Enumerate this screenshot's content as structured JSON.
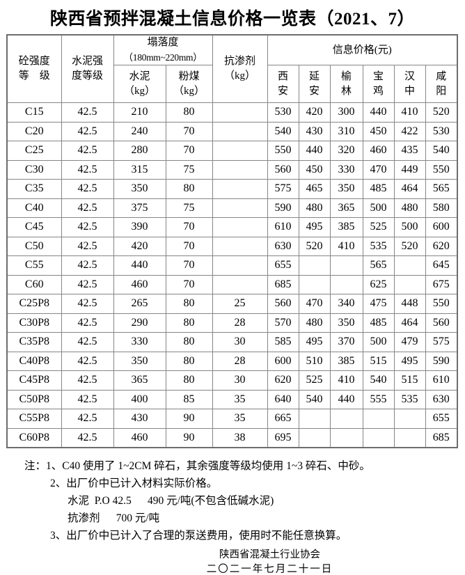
{
  "title": "陕西省预拌混凝土信息价格一览表（2021、7）",
  "table": {
    "header": {
      "strength_grade": {
        "line1": "砼强度",
        "line2": "等　级"
      },
      "cement_grade": {
        "line1": "水泥强",
        "line2": "度等级"
      },
      "slump_group": {
        "line1": "塌落度",
        "line2": "（180mm~220mm）"
      },
      "slump_cement": {
        "line1": "水泥",
        "line2": "（kg）"
      },
      "slump_flyash": {
        "line1": "粉煤",
        "line2": "（kg）"
      },
      "antiseep": {
        "line1": "抗渗剂",
        "line2": "（kg）"
      },
      "price_group": "信息价格(元)",
      "cities": [
        {
          "line1": "西",
          "line2": "安"
        },
        {
          "line1": "延",
          "line2": "安"
        },
        {
          "line1": "榆",
          "line2": "林"
        },
        {
          "line1": "宝",
          "line2": "鸡"
        },
        {
          "line1": "汉",
          "line2": "中"
        },
        {
          "line1": "咸",
          "line2": "阳"
        }
      ]
    },
    "rows": [
      {
        "grade": "C15",
        "cement_grade": "42.5",
        "cement_kg": "210",
        "fly_ash_kg": "80",
        "antiseep_kg": "",
        "prices": [
          "530",
          "420",
          "300",
          "440",
          "410",
          "520"
        ]
      },
      {
        "grade": "C20",
        "cement_grade": "42.5",
        "cement_kg": "240",
        "fly_ash_kg": "70",
        "antiseep_kg": "",
        "prices": [
          "540",
          "430",
          "310",
          "450",
          "422",
          "530"
        ]
      },
      {
        "grade": "C25",
        "cement_grade": "42.5",
        "cement_kg": "280",
        "fly_ash_kg": "70",
        "antiseep_kg": "",
        "prices": [
          "550",
          "440",
          "320",
          "460",
          "435",
          "540"
        ]
      },
      {
        "grade": "C30",
        "cement_grade": "42.5",
        "cement_kg": "315",
        "fly_ash_kg": "75",
        "antiseep_kg": "",
        "prices": [
          "560",
          "450",
          "330",
          "470",
          "449",
          "550"
        ]
      },
      {
        "grade": "C35",
        "cement_grade": "42.5",
        "cement_kg": "350",
        "fly_ash_kg": "80",
        "antiseep_kg": "",
        "prices": [
          "575",
          "465",
          "350",
          "485",
          "464",
          "565"
        ]
      },
      {
        "grade": "C40",
        "cement_grade": "42.5",
        "cement_kg": "375",
        "fly_ash_kg": "75",
        "antiseep_kg": "",
        "prices": [
          "590",
          "480",
          "365",
          "500",
          "480",
          "580"
        ]
      },
      {
        "grade": "C45",
        "cement_grade": "42.5",
        "cement_kg": "390",
        "fly_ash_kg": "70",
        "antiseep_kg": "",
        "prices": [
          "610",
          "495",
          "385",
          "525",
          "500",
          "600"
        ]
      },
      {
        "grade": "C50",
        "cement_grade": "42.5",
        "cement_kg": "420",
        "fly_ash_kg": "70",
        "antiseep_kg": "",
        "prices": [
          "630",
          "520",
          "410",
          "535",
          "520",
          "620"
        ]
      },
      {
        "grade": "C55",
        "cement_grade": "42.5",
        "cement_kg": "440",
        "fly_ash_kg": "70",
        "antiseep_kg": "",
        "prices": [
          "655",
          "",
          "",
          "565",
          "",
          "645"
        ]
      },
      {
        "grade": "C60",
        "cement_grade": "42.5",
        "cement_kg": "460",
        "fly_ash_kg": "70",
        "antiseep_kg": "",
        "prices": [
          "685",
          "",
          "",
          "625",
          "",
          "675"
        ]
      },
      {
        "grade": "C25P8",
        "cement_grade": "42.5",
        "cement_kg": "265",
        "fly_ash_kg": "80",
        "antiseep_kg": "25",
        "prices": [
          "560",
          "470",
          "340",
          "475",
          "448",
          "550"
        ]
      },
      {
        "grade": "C30P8",
        "cement_grade": "42.5",
        "cement_kg": "290",
        "fly_ash_kg": "80",
        "antiseep_kg": "28",
        "prices": [
          "570",
          "480",
          "350",
          "485",
          "464",
          "560"
        ]
      },
      {
        "grade": "C35P8",
        "cement_grade": "42.5",
        "cement_kg": "330",
        "fly_ash_kg": "80",
        "antiseep_kg": "30",
        "prices": [
          "585",
          "495",
          "370",
          "500",
          "479",
          "575"
        ]
      },
      {
        "grade": "C40P8",
        "cement_grade": "42.5",
        "cement_kg": "350",
        "fly_ash_kg": "80",
        "antiseep_kg": "28",
        "prices": [
          "600",
          "510",
          "385",
          "515",
          "495",
          "590"
        ]
      },
      {
        "grade": "C45P8",
        "cement_grade": "42.5",
        "cement_kg": "365",
        "fly_ash_kg": "80",
        "antiseep_kg": "30",
        "prices": [
          "620",
          "525",
          "410",
          "540",
          "515",
          "610"
        ]
      },
      {
        "grade": "C50P8",
        "cement_grade": "42.5",
        "cement_kg": "400",
        "fly_ash_kg": "85",
        "antiseep_kg": "35",
        "prices": [
          "640",
          "540",
          "440",
          "555",
          "535",
          "630"
        ]
      },
      {
        "grade": "C55P8",
        "cement_grade": "42.5",
        "cement_kg": "430",
        "fly_ash_kg": "90",
        "antiseep_kg": "35",
        "prices": [
          "665",
          "",
          "",
          "",
          "",
          "655"
        ]
      },
      {
        "grade": "C60P8",
        "cement_grade": "42.5",
        "cement_kg": "460",
        "fly_ash_kg": "90",
        "antiseep_kg": "38",
        "prices": [
          "695",
          "",
          "",
          "",
          "",
          "685"
        ]
      }
    ]
  },
  "notes": {
    "note1": "注：1、C40 使用了 1~2CM 碎石，其余强度等级均使用 1~3 碎石、中砂。",
    "note2": "2、出厂价中已计入材料实际价格。",
    "note2a": "水泥  P.O 42.5      490 元/吨(不包含低碱水泥)",
    "note2b": "抗渗剂      700 元/吨",
    "note3": "3、出厂价中已计入了合理的泵送费用，使用时不能任意换算。"
  },
  "footer": {
    "org": "陕西省混凝土行业协会",
    "date": "二〇二一年七月二十一日"
  }
}
